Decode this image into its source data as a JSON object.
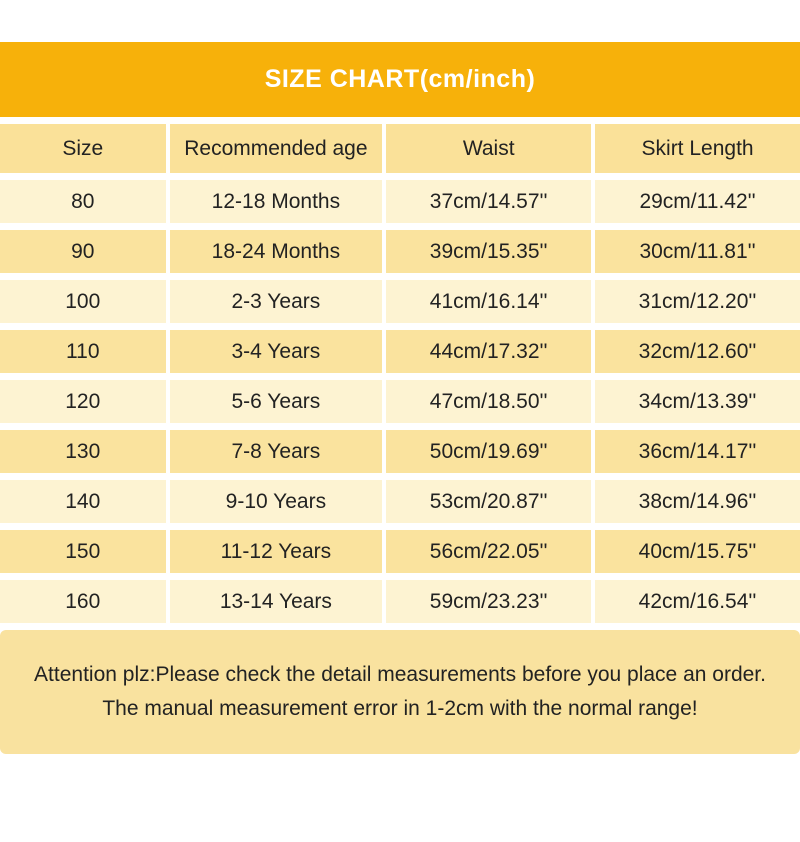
{
  "banner": {
    "title": "SIZE CHART(cm/inch)"
  },
  "table": {
    "columns": [
      "Size",
      "Recommended age",
      "Waist",
      "Skirt Length"
    ],
    "rows": [
      [
        "80",
        "12-18 Months",
        "37cm/14.57''",
        "29cm/11.42''"
      ],
      [
        "90",
        "18-24 Months",
        "39cm/15.35''",
        "30cm/11.81''"
      ],
      [
        "100",
        "2-3 Years",
        "41cm/16.14''",
        "31cm/12.20''"
      ],
      [
        "110",
        "3-4 Years",
        "44cm/17.32''",
        "32cm/12.60''"
      ],
      [
        "120",
        "5-6 Years",
        "47cm/18.50''",
        "34cm/13.39''"
      ],
      [
        "130",
        "7-8 Years",
        "50cm/19.69''",
        "36cm/14.17''"
      ],
      [
        "140",
        "9-10 Years",
        "53cm/20.87''",
        "38cm/14.96''"
      ],
      [
        "150",
        "11-12 Years",
        "56cm/22.05''",
        "40cm/15.75''"
      ],
      [
        "160",
        "13-14 Years",
        "59cm/23.23''",
        "42cm/16.54''"
      ]
    ]
  },
  "footer": {
    "line1": "Attention plz:Please check the detail measurements before you place an order.",
    "line2": "The manual measurement error in 1-2cm with the normal range!"
  },
  "colors": {
    "banner_bg": "#F7B10A",
    "title_text": "#FFFFFF",
    "header_row_bg": "#FAE199",
    "row_light": "#FDF3D2",
    "row_dark": "#FAE39E",
    "footer_bg": "#F9E29F",
    "separator": "#FFFFFF",
    "text_color": "#222222"
  }
}
